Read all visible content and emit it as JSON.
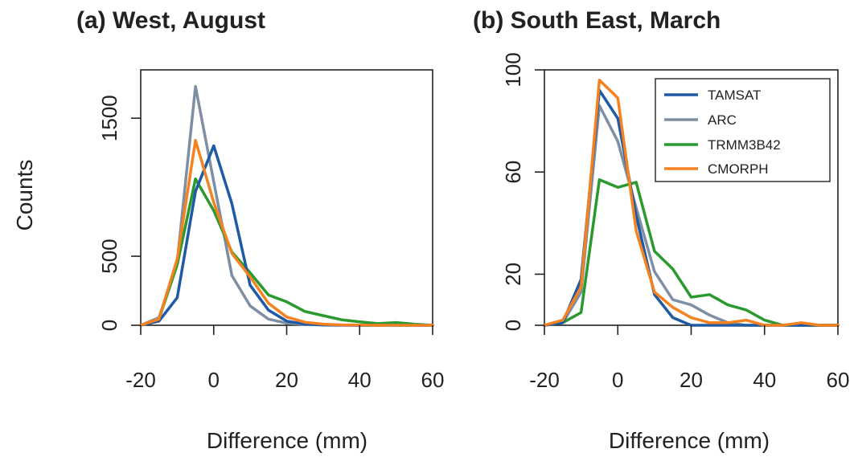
{
  "figure": {
    "ylabel": "Counts",
    "colors": {
      "TAMSAT": "#1f5aa6",
      "ARC": "#7f8fa3",
      "TRMM3B42": "#2a9a2e",
      "CMORPH": "#f5821f"
    },
    "line_order": [
      "ARC",
      "TRMM3B42",
      "TAMSAT",
      "CMORPH"
    ]
  },
  "chart_data": [
    {
      "type": "line",
      "title": "(a) West, August",
      "xlabel": "Difference (mm)",
      "ylabel": "Counts",
      "xlim": [
        -20,
        60
      ],
      "ylim": [
        0,
        1850
      ],
      "xticks": [
        -20,
        0,
        20,
        40,
        60
      ],
      "yticks": [
        0,
        500,
        1500
      ],
      "legend": false,
      "x": [
        -20,
        -15,
        -10,
        -5,
        0,
        5,
        10,
        15,
        20,
        25,
        30,
        35,
        40,
        45,
        50,
        55,
        60
      ],
      "series": [
        {
          "name": "TAMSAT",
          "values": [
            0,
            30,
            200,
            970,
            1300,
            880,
            290,
            110,
            30,
            8,
            3,
            1,
            0,
            0,
            0,
            0,
            0
          ]
        },
        {
          "name": "ARC",
          "values": [
            0,
            55,
            460,
            1730,
            1040,
            360,
            140,
            45,
            15,
            5,
            2,
            0,
            0,
            0,
            0,
            0,
            0
          ]
        },
        {
          "name": "TRMM3B42",
          "values": [
            0,
            45,
            440,
            1060,
            830,
            530,
            380,
            220,
            170,
            100,
            70,
            40,
            25,
            12,
            20,
            8,
            0
          ]
        },
        {
          "name": "CMORPH",
          "values": [
            0,
            45,
            480,
            1340,
            890,
            520,
            350,
            160,
            60,
            22,
            8,
            3,
            1,
            0,
            0,
            0,
            0
          ]
        }
      ]
    },
    {
      "type": "line",
      "title": "(b) South East, March",
      "xlabel": "Difference (mm)",
      "ylabel": "Counts",
      "xlim": [
        -20,
        60
      ],
      "ylim": [
        0,
        100
      ],
      "xticks": [
        -20,
        0,
        20,
        40,
        60
      ],
      "yticks": [
        0,
        20,
        60,
        100
      ],
      "legend": true,
      "legend_position": "top-right",
      "x": [
        -20,
        -15,
        -10,
        -5,
        0,
        5,
        10,
        15,
        20,
        25,
        30,
        35,
        40,
        45,
        50,
        55,
        60
      ],
      "series": [
        {
          "name": "TAMSAT",
          "values": [
            0,
            1,
            18,
            92,
            81,
            43,
            12,
            3,
            0,
            0,
            0,
            0,
            0,
            0,
            0,
            0,
            0
          ]
        },
        {
          "name": "ARC",
          "values": [
            0,
            1,
            13,
            86,
            72,
            46,
            21,
            10,
            8,
            4,
            1,
            0,
            0,
            0,
            0,
            0,
            0
          ]
        },
        {
          "name": "TRMM3B42",
          "values": [
            0,
            1,
            5,
            57,
            54,
            56,
            29,
            22,
            11,
            12,
            8,
            6,
            2,
            0,
            0,
            0,
            0
          ]
        },
        {
          "name": "CMORPH",
          "values": [
            0,
            2,
            15,
            96,
            89,
            37,
            13,
            7,
            3,
            1,
            1,
            2,
            0,
            0,
            1,
            0,
            0
          ]
        }
      ]
    }
  ]
}
